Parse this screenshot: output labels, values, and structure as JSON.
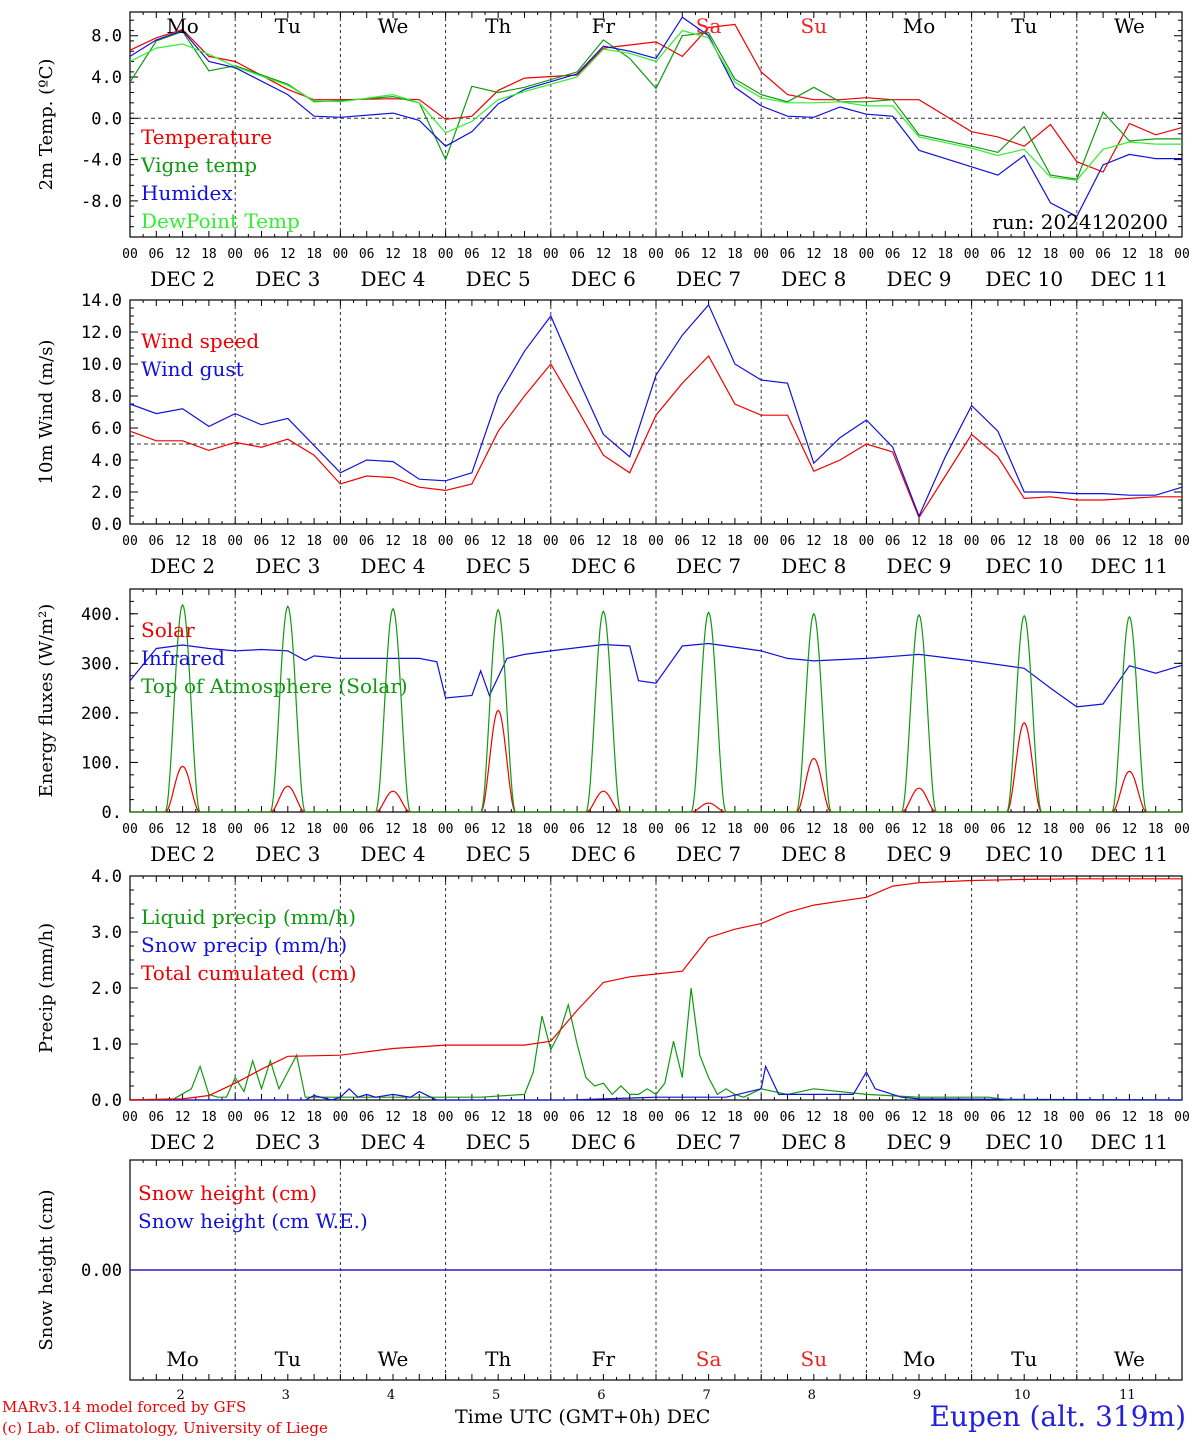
{
  "meta": {
    "run_label": "run: 2024120200",
    "station": "Eupen (alt. 319m)",
    "xlabel": "Time UTC (GMT+0h) DEC",
    "credit_line1": "MARv3.14 model forced by GFS",
    "credit_line2": "(c) Lab. of Climatology, University of Liege"
  },
  "days": {
    "weekday_labels": [
      "Mo",
      "Tu",
      "We",
      "Th",
      "Fr",
      "Sa",
      "Su",
      "Mo",
      "Tu",
      "We"
    ],
    "weekend_flags": [
      false,
      false,
      false,
      false,
      false,
      true,
      true,
      false,
      false,
      false
    ],
    "date_labels": [
      "DEC  2",
      "DEC  3",
      "DEC  4",
      "DEC  5",
      "DEC  6",
      "DEC  7",
      "DEC  8",
      "DEC  9",
      "DEC 10",
      "DEC 11"
    ],
    "day_numbers": [
      "2",
      "3",
      "4",
      "5",
      "6",
      "7",
      "8",
      "9",
      "10",
      "11"
    ],
    "hour_ticks": [
      "00",
      "06",
      "12",
      "18"
    ],
    "final_tick": "00"
  },
  "colors": {
    "red": "#ee0000",
    "darkgreen": "#119911",
    "blue": "#1111dd",
    "lightgreen": "#33ee33",
    "weekend": "#ee2222"
  },
  "chart_data": [
    {
      "type": "line",
      "id": "temp",
      "ylabel": "2m Temp. (ºC)",
      "ylim": [
        -11.5,
        10.3
      ],
      "yticks": [
        -8.0,
        -4.0,
        0.0,
        4.0,
        8.0
      ],
      "yticklabels": [
        "-8.0",
        "-4.0",
        "0.0",
        "4.0",
        "8.0"
      ],
      "reference_line": 0,
      "x_unit": "hours since DEC 2 00 UTC",
      "series": [
        {
          "name": "Temperature",
          "color": "#ee0000",
          "x": [
            0,
            6,
            12,
            18,
            24,
            36,
            42,
            48,
            60,
            66,
            72,
            78,
            84,
            90,
            102,
            108,
            120,
            126,
            132,
            138,
            144,
            150,
            156,
            162,
            168,
            174,
            180,
            192,
            198,
            204,
            210,
            216,
            222,
            228,
            234,
            240
          ],
          "y": [
            6.6,
            7.8,
            8.6,
            6.0,
            5.5,
            2.8,
            1.8,
            1.8,
            1.9,
            1.8,
            -0.1,
            0.2,
            2.7,
            3.9,
            4.2,
            6.8,
            7.4,
            6.0,
            8.8,
            9.1,
            4.5,
            2.3,
            1.8,
            1.8,
            2.0,
            1.8,
            1.8,
            -1.3,
            -1.8,
            -2.7,
            -0.6,
            -4.2,
            -5.2,
            -0.5,
            -1.6,
            -0.9
          ]
        },
        {
          "name": "Vigne temp",
          "color": "#119911",
          "x": [
            0,
            6,
            12,
            18,
            24,
            36,
            42,
            48,
            60,
            66,
            72,
            78,
            84,
            90,
            102,
            108,
            114,
            120,
            126,
            132,
            138,
            144,
            150,
            156,
            162,
            168,
            174,
            180,
            192,
            198,
            204,
            210,
            216,
            222,
            228,
            234,
            240
          ],
          "y": [
            3.5,
            7.5,
            8.4,
            4.6,
            5.1,
            3.3,
            1.6,
            1.7,
            2.1,
            1.5,
            -4.0,
            3.1,
            2.5,
            3.0,
            4.5,
            7.6,
            5.8,
            2.9,
            8.0,
            8.3,
            3.8,
            2.3,
            1.6,
            3.0,
            1.6,
            1.6,
            1.8,
            -1.6,
            -2.7,
            -3.3,
            -0.8,
            -5.5,
            -5.9,
            0.6,
            -2.2,
            -2.0,
            -2.0
          ]
        },
        {
          "name": "Humidex",
          "color": "#1111dd",
          "x": [
            0,
            6,
            12,
            18,
            24,
            36,
            42,
            48,
            60,
            66,
            72,
            78,
            84,
            90,
            102,
            108,
            114,
            120,
            126,
            132,
            138,
            144,
            150,
            156,
            162,
            168,
            174,
            180,
            192,
            198,
            204,
            210,
            216,
            222,
            228,
            234,
            240
          ],
          "y": [
            6.0,
            7.6,
            8.5,
            5.5,
            4.9,
            2.3,
            0.2,
            0.1,
            0.5,
            -0.2,
            -2.7,
            -1.3,
            1.4,
            2.8,
            4.3,
            7.0,
            6.5,
            5.8,
            9.8,
            8.0,
            3.0,
            1.2,
            0.2,
            0.1,
            1.1,
            0.4,
            0.2,
            -3.1,
            -4.7,
            -5.5,
            -3.6,
            -8.2,
            -9.5,
            -4.5,
            -3.5,
            -3.9,
            -3.9
          ]
        },
        {
          "name": "DewPoint Temp",
          "color": "#33ee33",
          "x": [
            0,
            6,
            12,
            18,
            24,
            36,
            42,
            48,
            60,
            66,
            72,
            78,
            84,
            90,
            102,
            108,
            114,
            120,
            126,
            132,
            138,
            144,
            150,
            156,
            162,
            168,
            174,
            180,
            192,
            198,
            204,
            210,
            216,
            222,
            228,
            234,
            240
          ],
          "y": [
            5.5,
            6.8,
            7.2,
            6.2,
            5.0,
            3.2,
            1.7,
            1.6,
            2.3,
            1.5,
            -1.4,
            -0.3,
            1.8,
            2.6,
            4.0,
            6.7,
            6.3,
            5.5,
            8.5,
            7.8,
            3.5,
            2.0,
            1.5,
            1.5,
            1.6,
            1.2,
            1.2,
            -1.8,
            -2.9,
            -3.6,
            -3.0,
            -5.7,
            -6.0,
            -3.0,
            -2.3,
            -2.5,
            -2.5
          ]
        }
      ]
    },
    {
      "type": "line",
      "id": "wind",
      "ylabel": "10m Wind (m/s)",
      "ylim": [
        0,
        14.0
      ],
      "yticks": [
        0,
        2,
        4,
        6,
        8,
        10,
        12,
        14
      ],
      "yticklabels": [
        "0.0",
        "2.0",
        "4.0",
        "6.0",
        "8.0",
        "10.0",
        "12.0",
        "14.0"
      ],
      "reference_line": 5,
      "x_unit": "hours since DEC 2 00 UTC",
      "series": [
        {
          "name": "Wind speed",
          "color": "#ee0000",
          "x": [
            0,
            6,
            12,
            18,
            24,
            30,
            36,
            42,
            48,
            54,
            60,
            66,
            72,
            78,
            84,
            90,
            96,
            102,
            108,
            114,
            120,
            126,
            132,
            138,
            144,
            150,
            156,
            162,
            168,
            174,
            180,
            186,
            192,
            198,
            204,
            210,
            216,
            222,
            228,
            234,
            240
          ],
          "y": [
            5.8,
            5.2,
            5.2,
            4.6,
            5.1,
            4.8,
            5.3,
            4.3,
            2.5,
            3.0,
            2.9,
            2.3,
            2.1,
            2.5,
            5.8,
            8.0,
            10.0,
            7.2,
            4.3,
            3.2,
            6.8,
            8.8,
            10.5,
            7.5,
            6.8,
            6.8,
            3.3,
            4.0,
            5.0,
            4.5,
            0.4,
            3.0,
            5.6,
            4.2,
            1.6,
            1.7,
            1.5,
            1.5,
            1.6,
            1.7,
            1.7
          ]
        },
        {
          "name": "Wind gust",
          "color": "#1111dd",
          "x": [
            0,
            6,
            12,
            18,
            24,
            30,
            36,
            42,
            48,
            54,
            60,
            66,
            72,
            78,
            84,
            90,
            96,
            102,
            108,
            114,
            120,
            126,
            132,
            138,
            144,
            150,
            156,
            162,
            168,
            174,
            180,
            186,
            192,
            198,
            204,
            210,
            216,
            222,
            228,
            234,
            240
          ],
          "y": [
            7.5,
            6.9,
            7.2,
            6.1,
            6.9,
            6.2,
            6.6,
            4.9,
            3.2,
            4.0,
            3.9,
            2.8,
            2.7,
            3.2,
            8.0,
            10.8,
            13.0,
            9.2,
            5.6,
            4.2,
            9.3,
            11.8,
            13.7,
            10.0,
            9.0,
            8.8,
            3.8,
            5.4,
            6.5,
            4.8,
            0.5,
            4.2,
            7.4,
            5.8,
            2.0,
            2.0,
            1.9,
            1.9,
            1.8,
            1.8,
            2.3
          ]
        }
      ]
    },
    {
      "type": "line",
      "id": "energy",
      "ylabel": "Energy fluxes (W/m²)",
      "ylim": [
        0,
        450
      ],
      "yticks": [
        0,
        100,
        200,
        300,
        400
      ],
      "yticklabels": [
        "0.",
        "100.",
        "200.",
        "300.",
        "400."
      ],
      "x_unit": "hours since DEC 2 00 UTC",
      "series": [
        {
          "name": "Solar",
          "color": "#ee0000",
          "x": [
            0,
            24,
            48,
            72,
            96,
            120,
            144,
            168,
            192,
            216
          ],
          "peak_hour": 12,
          "peaks": [
            92,
            52,
            42,
            205,
            42,
            18,
            108,
            48,
            180,
            82
          ],
          "halfwidth": 4
        },
        {
          "name": "Infrared",
          "color": "#1111dd",
          "x": [
            0,
            6,
            12,
            18,
            24,
            30,
            36,
            40,
            42,
            48,
            60,
            66,
            70,
            72,
            78,
            80,
            82,
            86,
            90,
            96,
            108,
            114,
            116,
            120,
            126,
            132,
            144,
            150,
            156,
            168,
            180,
            192,
            204,
            210,
            216,
            222,
            228,
            234,
            240
          ],
          "y": [
            265,
            330,
            337,
            330,
            325,
            328,
            325,
            306,
            315,
            310,
            310,
            310,
            303,
            230,
            235,
            285,
            235,
            310,
            318,
            325,
            338,
            335,
            265,
            260,
            335,
            340,
            325,
            310,
            305,
            310,
            318,
            305,
            290,
            250,
            212,
            218,
            295,
            280,
            296
          ]
        },
        {
          "name": "Top of Atmosphere (Solar)",
          "color": "#119911",
          "x": [
            0,
            24,
            48,
            72,
            96,
            120,
            144,
            168,
            192,
            216
          ],
          "peak_hour": 12,
          "peaks": [
            418,
            415,
            410,
            408,
            405,
            403,
            400,
            398,
            396,
            394
          ],
          "halfwidth": 4
        }
      ]
    },
    {
      "type": "line",
      "id": "precip",
      "ylabel": "Precip (mm/h)",
      "ylim": [
        0,
        4.0
      ],
      "yticks": [
        0,
        1,
        2,
        3,
        4
      ],
      "yticklabels": [
        "0.0",
        "1.0",
        "2.0",
        "3.0",
        "4.0"
      ],
      "x_unit": "hours since DEC 2 00 UTC",
      "series": [
        {
          "name": "Liquid precip (mm/h)",
          "color": "#119911",
          "x": [
            0,
            10,
            14,
            16,
            18,
            20,
            22,
            24,
            26,
            28,
            30,
            32,
            34,
            36,
            38,
            40,
            60,
            80,
            90,
            92,
            94,
            96,
            98,
            100,
            102,
            104,
            106,
            108,
            110,
            112,
            114,
            116,
            118,
            120,
            122,
            124,
            126,
            128,
            130,
            132,
            134,
            136,
            138,
            140,
            144,
            150,
            156,
            168,
            180,
            196,
            200,
            240
          ],
          "y": [
            0,
            0.02,
            0.2,
            0.6,
            0.1,
            0.05,
            0.05,
            0.4,
            0.15,
            0.7,
            0.2,
            0.7,
            0.2,
            0.5,
            0.8,
            0.05,
            0.05,
            0.05,
            0.1,
            0.5,
            1.5,
            0.9,
            1.2,
            1.7,
            1.0,
            0.4,
            0.25,
            0.3,
            0.1,
            0.25,
            0.1,
            0.1,
            0.2,
            0.1,
            0.3,
            1.05,
            0.4,
            2.0,
            0.8,
            0.4,
            0.1,
            0.2,
            0.1,
            0.05,
            0.2,
            0.1,
            0.2,
            0.1,
            0.05,
            0.05,
            0.0,
            0.0
          ]
        },
        {
          "name": "Snow precip (mm/h)",
          "color": "#1111dd",
          "x": [
            0,
            24,
            40,
            42,
            46,
            48,
            50,
            52,
            54,
            56,
            60,
            64,
            66,
            70,
            100,
            120,
            136,
            144,
            145,
            148,
            156,
            165,
            168,
            170,
            176,
            180,
            240
          ],
          "y": [
            0,
            0,
            0,
            0.08,
            0.0,
            0.05,
            0.2,
            0.05,
            0.1,
            0.05,
            0.1,
            0.05,
            0.15,
            0.0,
            0.0,
            0.05,
            0.05,
            0.2,
            0.6,
            0.1,
            0.1,
            0.1,
            0.5,
            0.2,
            0.05,
            0.02,
            0.0
          ]
        },
        {
          "name": "Total cumulated (cm)",
          "color": "#ee0000",
          "x": [
            0,
            12,
            18,
            24,
            30,
            36,
            48,
            60,
            72,
            84,
            90,
            96,
            102,
            108,
            114,
            120,
            126,
            132,
            138,
            144,
            150,
            156,
            162,
            168,
            174,
            180,
            192,
            204,
            216,
            228,
            240
          ],
          "y": [
            0,
            0.02,
            0.08,
            0.3,
            0.55,
            0.78,
            0.8,
            0.92,
            0.98,
            0.98,
            0.98,
            1.05,
            1.6,
            2.1,
            2.2,
            2.25,
            2.3,
            2.9,
            3.05,
            3.15,
            3.35,
            3.48,
            3.55,
            3.62,
            3.82,
            3.88,
            3.92,
            3.94,
            3.95,
            3.95,
            3.95
          ]
        }
      ]
    },
    {
      "type": "line",
      "id": "snow",
      "ylabel": "Snow height (cm)",
      "ylim": [
        -0.5,
        0.5
      ],
      "yticks": [
        0
      ],
      "yticklabels": [
        "0.00"
      ],
      "x_unit": "hours since DEC 2 00 UTC",
      "series": [
        {
          "name": "Snow height (cm)",
          "color": "#ee0000",
          "x": [
            0,
            240
          ],
          "y": [
            0,
            0
          ]
        },
        {
          "name": "Snow height (cm W.E.)",
          "color": "#1111dd",
          "x": [
            0,
            240
          ],
          "y": [
            0,
            0
          ]
        }
      ]
    }
  ]
}
